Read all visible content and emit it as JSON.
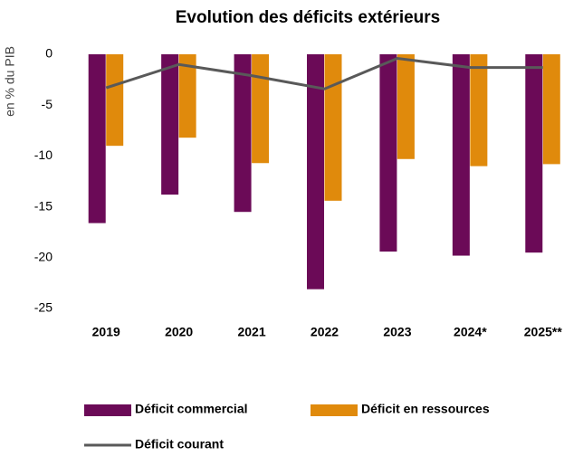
{
  "chart_data": {
    "type": "bar",
    "title": "Evolution des déficits extérieurs",
    "y_label": "en % du PIB",
    "categories": [
      "2019",
      "2020",
      "2021",
      "2022",
      "2023",
      "2024*",
      "2025**"
    ],
    "series": [
      {
        "name": "Déficit commercial",
        "color": "#6b0a57",
        "type": "bar",
        "values": [
          -16.6,
          -13.8,
          -15.5,
          -23.1,
          -19.4,
          -19.8,
          -19.5
        ]
      },
      {
        "name": "Déficit en ressources",
        "color": "#e08a0c",
        "type": "bar",
        "values": [
          -9.0,
          -8.2,
          -10.7,
          -14.4,
          -10.3,
          -11.0,
          -10.8
        ]
      },
      {
        "name": "Déficit courant",
        "color": "#595959",
        "type": "line",
        "values": [
          -3.3,
          -1.0,
          -2.1,
          -3.4,
          -0.4,
          -1.3,
          -1.3
        ]
      }
    ],
    "ylim": [
      -25,
      0
    ],
    "yticks": [
      -25,
      -20,
      -15,
      -10,
      -5,
      0
    ],
    "grid": false
  }
}
